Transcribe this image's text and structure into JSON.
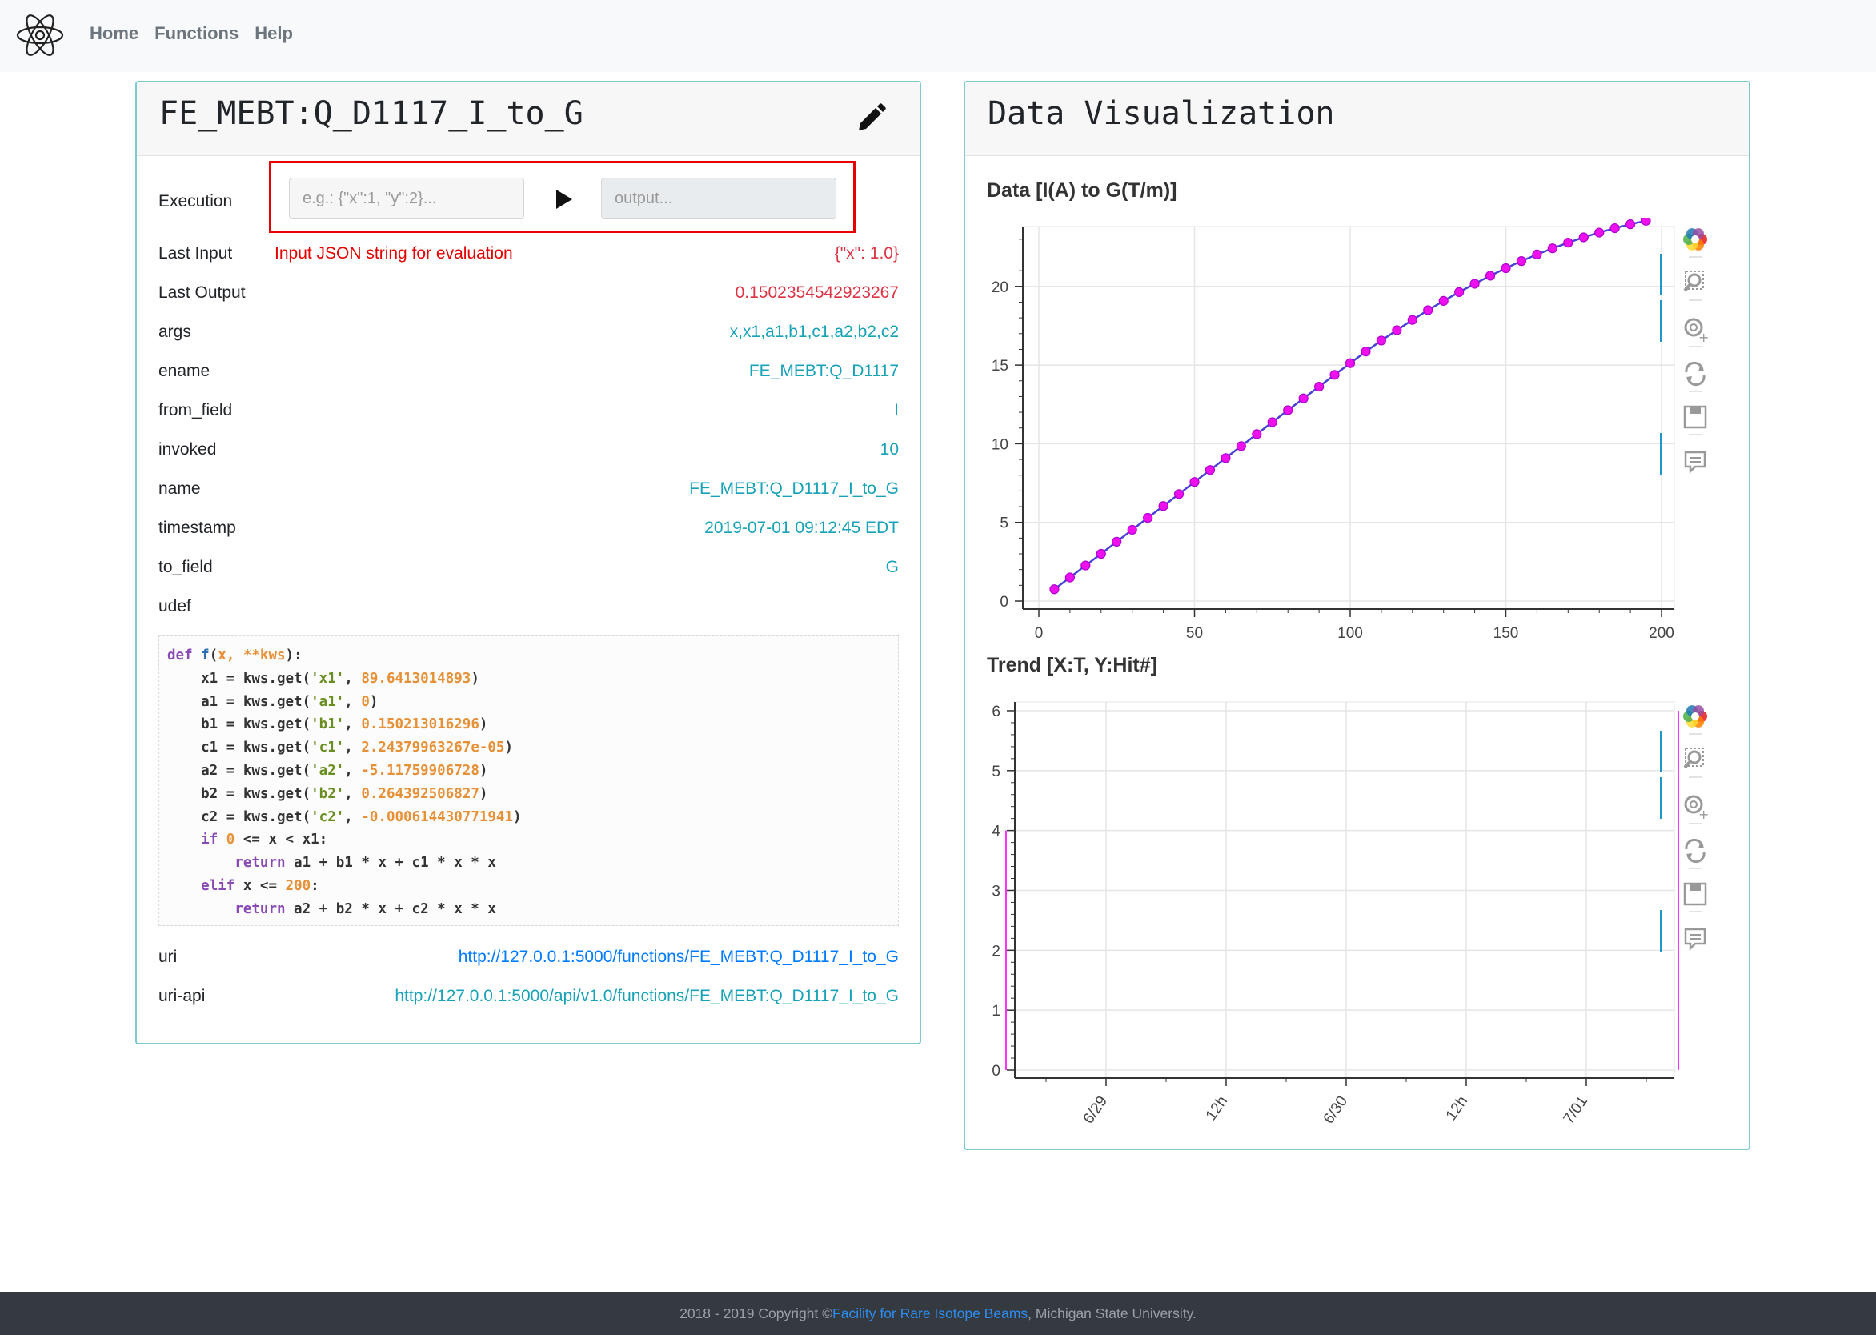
{
  "nav": {
    "links": [
      "Home",
      "Functions",
      "Help"
    ]
  },
  "function_card": {
    "title": "FE_MEBT:Q_D1117_I_to_G",
    "execution_label": "Execution",
    "input_placeholder": "e.g.: {\"x\":1, \"y\":2}...",
    "output_placeholder": "output...",
    "hint": "Input JSON string for evaluation",
    "rows": [
      {
        "key": "Last Input",
        "value": "{\"x\": 1.0}"
      },
      {
        "key": "Last Output",
        "value": "0.1502354542923267"
      },
      {
        "key": "args",
        "value": "x,x1,a1,b1,c1,a2,b2,c2"
      },
      {
        "key": "ename",
        "value": "FE_MEBT:Q_D1117"
      },
      {
        "key": "from_field",
        "value": "I"
      },
      {
        "key": "invoked",
        "value": "10"
      },
      {
        "key": "name",
        "value": "FE_MEBT:Q_D1117_I_to_G"
      },
      {
        "key": "timestamp",
        "value": "2019-07-01 09:12:45 EDT"
      },
      {
        "key": "to_field",
        "value": "G"
      },
      {
        "key": "udef",
        "value": ""
      },
      {
        "key": "uri",
        "value": "http://127.0.0.1:5000/functions/FE_MEBT:Q_D1117_I_to_G"
      },
      {
        "key": "uri-api",
        "value": "http://127.0.0.1:5000/api/v1.0/functions/FE_MEBT:Q_D1117_I_to_G"
      }
    ],
    "code": [
      "def f(x, **kws):",
      "    x1 = kws.get('x1', 89.6413014893)",
      "    a1 = kws.get('a1', 0)",
      "    b1 = kws.get('b1', 0.150213016296)",
      "    c1 = kws.get('c1', 2.24379963267e-05)",
      "    a2 = kws.get('a2', -5.11759906728)",
      "    b2 = kws.get('b2', 0.264392506827)",
      "    c2 = kws.get('c2', -0.000614430771941)",
      "    if 0 <= x < x1:",
      "        return a1 + b1 * x + c1 * x * x",
      "    elif x <= 200:",
      "        return a2 + b2 * x + c2 * x * x"
    ]
  },
  "viz_card": {
    "title": "Data Visualization"
  },
  "chart_data": [
    {
      "type": "line",
      "title": "Data [I(A) to G(T/m)]",
      "xlabel": "",
      "ylabel": "",
      "xlim": [
        0,
        200
      ],
      "ylim": [
        0,
        23.5
      ],
      "xticks": [
        0,
        50,
        100,
        150,
        200
      ],
      "yticks": [
        0,
        5,
        10,
        15,
        20
      ],
      "grid": true,
      "line_color": "#4b3fd6",
      "marker_color": "#ee11ee",
      "x": [
        5,
        10,
        15,
        20,
        25,
        30,
        35,
        40,
        45,
        50,
        55,
        60,
        65,
        70,
        75,
        80,
        85,
        90,
        95,
        100,
        105,
        110,
        115,
        120,
        125,
        130,
        135,
        140,
        145,
        150,
        155,
        160,
        165,
        170,
        175,
        180,
        185,
        190,
        195
      ],
      "y": [
        0.75,
        1.5,
        2.26,
        3.0,
        3.77,
        4.53,
        5.29,
        6.04,
        6.8,
        7.57,
        8.33,
        9.09,
        9.85,
        10.61,
        11.37,
        12.13,
        12.88,
        13.63,
        14.38,
        15.12,
        15.86,
        16.56,
        17.22,
        17.87,
        18.49,
        19.08,
        19.64,
        20.17,
        20.68,
        21.16,
        21.61,
        22.03,
        22.42,
        22.78,
        23.12,
        23.42,
        23.7,
        23.95,
        24.17
      ]
    },
    {
      "type": "bar",
      "title": "Trend [X:T, Y:Hit#]",
      "xlabel": "",
      "ylabel": "",
      "xticks": [
        "6/29",
        "12h",
        "6/30",
        "12h",
        "7/01"
      ],
      "yticks": [
        0,
        1,
        2,
        3,
        4,
        5,
        6
      ],
      "ylim": [
        0,
        6.2
      ],
      "grid": true,
      "bar_color": "#ff33ff",
      "events": [
        {
          "t": "2019-06-28 14:00",
          "hits": 4
        },
        {
          "t": "2019-07-01 09:12",
          "hits": 6
        }
      ]
    }
  ],
  "footer": {
    "prefix": "2018 - 2019 Copyright © ",
    "link": "Facility for Rare Isotope Beams",
    "suffix": ", Michigan State University."
  }
}
